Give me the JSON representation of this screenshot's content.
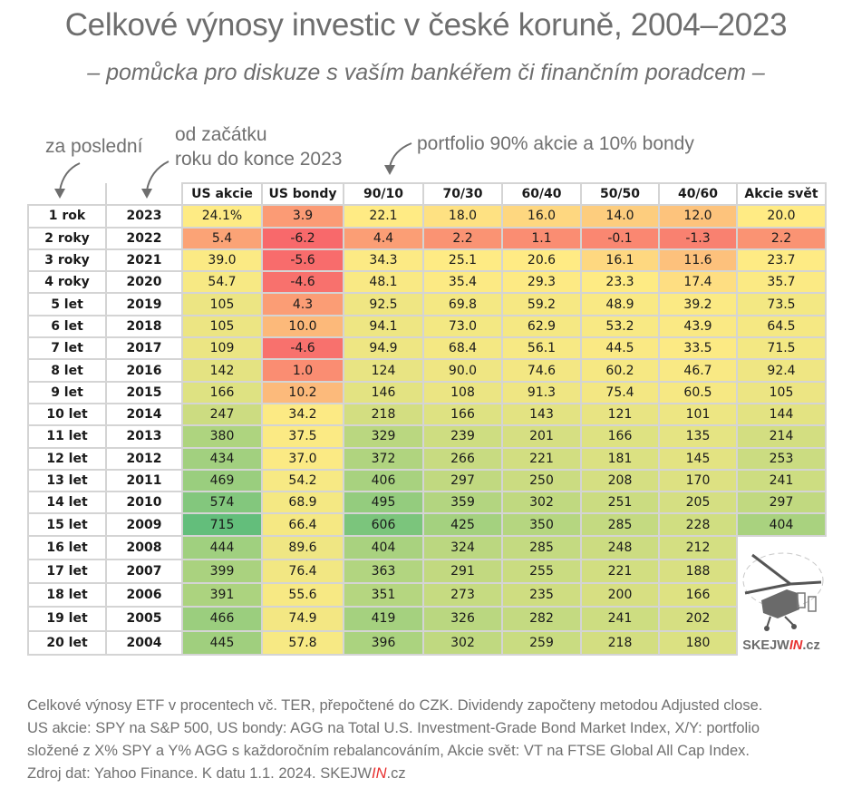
{
  "title": "Celkové výnosy investic v české koruně, 2004–2023",
  "subtitle": "– pomůcka pro diskuze s vaším bankéřem či finančním poradcem –",
  "annotations": {
    "za_posledni": "za poslední",
    "od_zacatku_line1": "od začátku",
    "od_zacatku_line2": "roku do konce 2023",
    "portfolio": "portfolio 90% akcie a 10% bondy"
  },
  "logo": {
    "text_before": "SKEJW",
    "text_in": "IN",
    "text_after": ".cz"
  },
  "footer": {
    "line1": "Celkové výnosy ETF v procentech vč. TER, přepočtené do CZK. Dividendy započteny metodou Adjusted close.",
    "line2": "US akcie: SPY na S&P 500, US bondy: AGG na Total U.S. Investment-Grade Bond Market Index, X/Y: portfolio",
    "line3": "složené z X% SPY a Y% AGG s každoročním rebalancováním, Akcie svět: VT na FTSE Global All Cap Index.",
    "line4_before": "Zdroj dat: Yahoo Finance. K datu 1.1. 2024. SKEJW",
    "line4_in": "IN",
    "line4_after": ".cz"
  },
  "colors": {
    "red": "#f8696b",
    "yellow": "#ffeb84",
    "green": "#63be7b"
  },
  "chart_data": {
    "type": "table",
    "title": "Celkové výnosy investic v české koruně, 2004–2023",
    "columns": [
      "US akcie",
      "US bondy",
      "90/10",
      "70/30",
      "60/40",
      "50/50",
      "40/60",
      "Akcie svět"
    ],
    "rows": [
      {
        "period": "1 rok",
        "year": "2023",
        "values": [
          "24.1%",
          "3.9",
          "22.1",
          "18.0",
          "16.0",
          "14.0",
          "12.0",
          "20.0"
        ]
      },
      {
        "period": "2 roky",
        "year": "2022",
        "values": [
          "5.4",
          "-6.2",
          "4.4",
          "2.2",
          "1.1",
          "-0.1",
          "-1.3",
          "2.2"
        ]
      },
      {
        "period": "3 roky",
        "year": "2021",
        "values": [
          "39.0",
          "-5.6",
          "34.3",
          "25.1",
          "20.6",
          "16.1",
          "11.6",
          "23.7"
        ]
      },
      {
        "period": "4 roky",
        "year": "2020",
        "values": [
          "54.7",
          "-4.6",
          "48.1",
          "35.4",
          "29.3",
          "23.3",
          "17.4",
          "35.7"
        ]
      },
      {
        "period": "5 let",
        "year": "2019",
        "values": [
          "105",
          "4.3",
          "92.5",
          "69.8",
          "59.2",
          "48.9",
          "39.2",
          "73.5"
        ]
      },
      {
        "period": "6 let",
        "year": "2018",
        "values": [
          "105",
          "10.0",
          "94.1",
          "73.0",
          "62.9",
          "53.2",
          "43.9",
          "64.5"
        ]
      },
      {
        "period": "7 let",
        "year": "2017",
        "values": [
          "109",
          "-4.6",
          "94.9",
          "68.4",
          "56.1",
          "44.5",
          "33.5",
          "71.5"
        ]
      },
      {
        "period": "8 let",
        "year": "2016",
        "values": [
          "142",
          "1.0",
          "124",
          "90.0",
          "74.6",
          "60.2",
          "46.7",
          "92.4"
        ]
      },
      {
        "period": "9 let",
        "year": "2015",
        "values": [
          "166",
          "10.2",
          "146",
          "108",
          "91.3",
          "75.4",
          "60.5",
          "105"
        ]
      },
      {
        "period": "10 let",
        "year": "2014",
        "values": [
          "247",
          "34.2",
          "218",
          "166",
          "143",
          "121",
          "101",
          "144"
        ]
      },
      {
        "period": "11 let",
        "year": "2013",
        "values": [
          "380",
          "37.5",
          "329",
          "239",
          "201",
          "166",
          "135",
          "214"
        ]
      },
      {
        "period": "12 let",
        "year": "2012",
        "values": [
          "434",
          "37.0",
          "372",
          "266",
          "221",
          "181",
          "145",
          "253"
        ]
      },
      {
        "period": "13 let",
        "year": "2011",
        "values": [
          "469",
          "54.2",
          "406",
          "297",
          "250",
          "208",
          "170",
          "241"
        ]
      },
      {
        "period": "14 let",
        "year": "2010",
        "values": [
          "574",
          "68.9",
          "495",
          "359",
          "302",
          "251",
          "205",
          "297"
        ]
      },
      {
        "period": "15 let",
        "year": "2009",
        "values": [
          "715",
          "66.4",
          "606",
          "425",
          "350",
          "285",
          "228",
          "404"
        ]
      },
      {
        "period": "16 let",
        "year": "2008",
        "values": [
          "444",
          "89.6",
          "404",
          "324",
          "285",
          "248",
          "212",
          null
        ]
      },
      {
        "period": "17 let",
        "year": "2007",
        "values": [
          "399",
          "76.4",
          "363",
          "291",
          "255",
          "221",
          "188",
          null
        ]
      },
      {
        "period": "18 let",
        "year": "2006",
        "values": [
          "391",
          "55.6",
          "351",
          "273",
          "235",
          "200",
          "166",
          null
        ]
      },
      {
        "period": "19 let",
        "year": "2005",
        "values": [
          "466",
          "74.9",
          "419",
          "326",
          "282",
          "241",
          "202",
          null
        ]
      },
      {
        "period": "20 let",
        "year": "2004",
        "values": [
          "445",
          "57.8",
          "396",
          "302",
          "259",
          "218",
          "180",
          null
        ]
      }
    ],
    "color_scale": {
      "min": -6.2,
      "mid": 20,
      "max": 715
    }
  }
}
